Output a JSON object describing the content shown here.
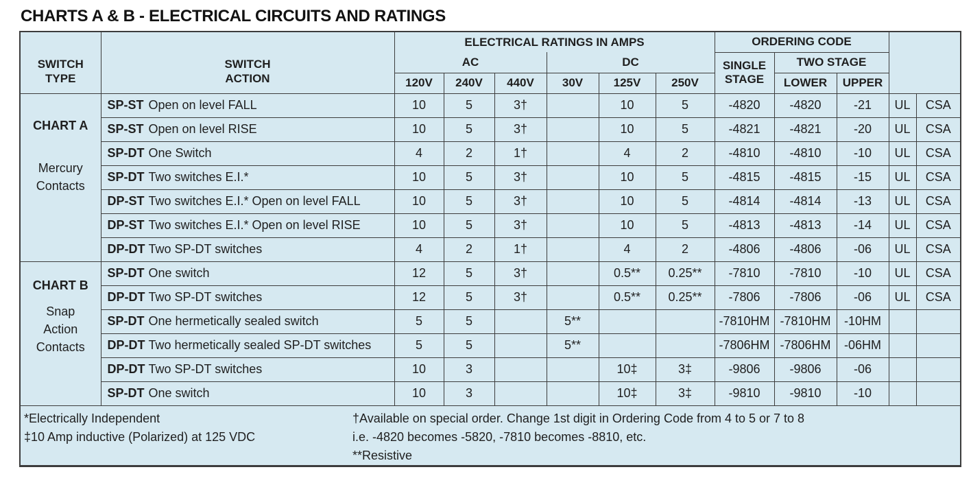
{
  "title": "CHARTS A & B - ELECTRICAL CIRCUITS AND RATINGS",
  "colors": {
    "table_background": "#d6e9f1",
    "border": "#3c3c3c",
    "text": "#1f1f1f",
    "page_background": "#ffffff"
  },
  "header": {
    "switch_type_lines": [
      "SWITCH",
      "TYPE"
    ],
    "switch_action_lines": [
      "SWITCH",
      "ACTION"
    ],
    "ratings_group": "ELECTRICAL RATINGS IN AMPS",
    "ac": "AC",
    "dc": "DC",
    "voltages_ac": [
      "120V",
      "240V",
      "440V"
    ],
    "voltages_dc": [
      "30V",
      "125V",
      "250V"
    ],
    "ordering_code": "ORDERING CODE",
    "single_stage_lines": [
      "SINGLE",
      "STAGE"
    ],
    "two_stage": "TWO STAGE",
    "lower": "LOWER",
    "upper": "UPPER"
  },
  "sections": [
    {
      "name": "CHART A",
      "subtitle_lines": [
        "Mercury",
        "Contacts"
      ],
      "rows": [
        {
          "code": "SP-ST",
          "action": "Open on level FALL",
          "v120": "10",
          "v240": "5",
          "v440": "3†",
          "v30": "",
          "v125": "10",
          "v250": "5",
          "single": "-4820",
          "lower": "-4820",
          "upper": "-21",
          "ul": "UL",
          "csa": "CSA"
        },
        {
          "code": "SP-ST",
          "action": "Open on level RISE",
          "v120": "10",
          "v240": "5",
          "v440": "3†",
          "v30": "",
          "v125": "10",
          "v250": "5",
          "single": "-4821",
          "lower": "-4821",
          "upper": "-20",
          "ul": "UL",
          "csa": "CSA"
        },
        {
          "code": "SP-DT",
          "action": "One Switch",
          "v120": "4",
          "v240": "2",
          "v440": "1†",
          "v30": "",
          "v125": "4",
          "v250": "2",
          "single": "-4810",
          "lower": "-4810",
          "upper": "-10",
          "ul": "UL",
          "csa": "CSA"
        },
        {
          "code": "SP-DT",
          "action": "Two switches E.I.*",
          "v120": "10",
          "v240": "5",
          "v440": "3†",
          "v30": "",
          "v125": "10",
          "v250": "5",
          "single": "-4815",
          "lower": "-4815",
          "upper": "-15",
          "ul": "UL",
          "csa": "CSA"
        },
        {
          "code": "DP-ST",
          "action": "Two switches E.I.* Open on level FALL",
          "v120": "10",
          "v240": "5",
          "v440": "3†",
          "v30": "",
          "v125": "10",
          "v250": "5",
          "single": "-4814",
          "lower": "-4814",
          "upper": "-13",
          "ul": "UL",
          "csa": "CSA"
        },
        {
          "code": "DP-ST",
          "action": "Two switches E.I.* Open on level RISE",
          "v120": "10",
          "v240": "5",
          "v440": "3†",
          "v30": "",
          "v125": "10",
          "v250": "5",
          "single": "-4813",
          "lower": "-4813",
          "upper": "-14",
          "ul": "UL",
          "csa": "CSA"
        },
        {
          "code": "DP-DT",
          "action": "Two SP-DT switches",
          "v120": "4",
          "v240": "2",
          "v440": "1†",
          "v30": "",
          "v125": "4",
          "v250": "2",
          "single": "-4806",
          "lower": "-4806",
          "upper": "-06",
          "ul": "UL",
          "csa": "CSA"
        }
      ]
    },
    {
      "name": "CHART B",
      "subtitle_lines": [
        "Snap",
        "Action",
        "Contacts"
      ],
      "rows": [
        {
          "code": "SP-DT",
          "action": "One switch",
          "v120": "12",
          "v240": "5",
          "v440": "3†",
          "v30": "",
          "v125": "0.5**",
          "v250": "0.25**",
          "single": "-7810",
          "lower": "-7810",
          "upper": "-10",
          "ul": "UL",
          "csa": "CSA"
        },
        {
          "code": "DP-DT",
          "action": "Two SP-DT switches",
          "v120": "12",
          "v240": "5",
          "v440": "3†",
          "v30": "",
          "v125": "0.5**",
          "v250": "0.25**",
          "single": "-7806",
          "lower": "-7806",
          "upper": "-06",
          "ul": "UL",
          "csa": "CSA"
        },
        {
          "code": "SP-DT",
          "action": "One hermetically sealed switch",
          "v120": "5",
          "v240": "5",
          "v440": "",
          "v30": "5**",
          "v125": "",
          "v250": "",
          "single": "-7810HM",
          "lower": "-7810HM",
          "upper": "-10HM",
          "ul": "",
          "csa": ""
        },
        {
          "code": "DP-DT",
          "action": "Two hermetically sealed SP-DT switches",
          "v120": "5",
          "v240": "5",
          "v440": "",
          "v30": "5**",
          "v125": "",
          "v250": "",
          "single": "-7806HM",
          "lower": "-7806HM",
          "upper": "-06HM",
          "ul": "",
          "csa": ""
        },
        {
          "code": "DP-DT",
          "action": "Two SP-DT switches",
          "v120": "10",
          "v240": "3",
          "v440": "",
          "v30": "",
          "v125": "10‡",
          "v250": "3‡",
          "single": "-9806",
          "lower": "-9806",
          "upper": "-06",
          "ul": "",
          "csa": ""
        },
        {
          "code": "SP-DT",
          "action": "One switch",
          "v120": "10",
          "v240": "3",
          "v440": "",
          "v30": "",
          "v125": "10‡",
          "v250": "3‡",
          "single": "-9810",
          "lower": "-9810",
          "upper": "-10",
          "ul": "",
          "csa": ""
        }
      ]
    }
  ],
  "footnotes": {
    "left": [
      "*Electrically Independent",
      "‡10 Amp inductive (Polarized) at 125 VDC"
    ],
    "right": [
      "†Available on special order. Change 1st digit in Ordering Code from 4 to 5 or 7 to 8",
      "i.e. -4820 becomes -5820, -7810 becomes -8810, etc.",
      "**Resistive"
    ]
  }
}
